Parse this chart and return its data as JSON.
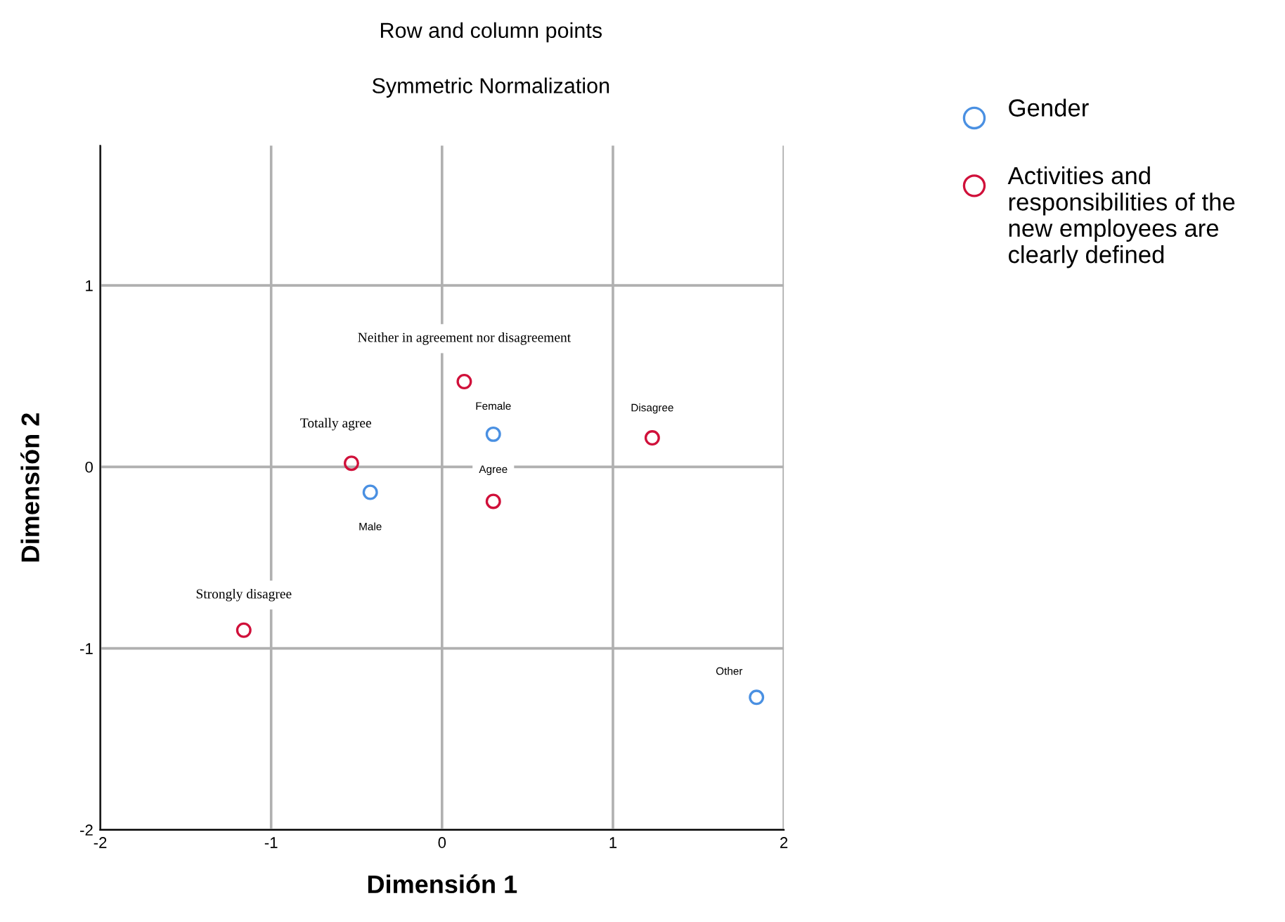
{
  "chart_data": {
    "type": "scatter",
    "title": "Row and column points",
    "subtitle": "Symmetric Normalization",
    "xlabel": "Dimensión 1",
    "ylabel": "Dimensión 2",
    "xlim": [
      -2,
      2
    ],
    "ylim": [
      -2,
      1.77
    ],
    "xticks": [
      -2,
      -1,
      0,
      1,
      2
    ],
    "yticks": [
      -2,
      -1,
      0,
      1
    ],
    "grid": true,
    "legend": "top right",
    "marker": "circle",
    "series": [
      {
        "name": "Gender",
        "color": "#4a90e2",
        "x": [
          0.3,
          -0.42,
          1.84
        ],
        "values": [
          0.18,
          -0.14,
          -1.27
        ]
      },
      {
        "name": "Activities and responsibilities of the new employees are clearly defined",
        "color": "#d0103a",
        "x": [
          0.13,
          -0.53,
          0.3,
          1.23,
          -1.16
        ],
        "values": [
          0.47,
          0.02,
          -0.19,
          0.16,
          -0.9
        ]
      }
    ],
    "annotations": [
      {
        "text": "Female",
        "x": 0.3,
        "y": 0.18
      },
      {
        "text": "Male",
        "x": -0.42,
        "y": -0.14
      },
      {
        "text": "Other",
        "x": 1.84,
        "y": -1.27
      },
      {
        "text": "Neither in agreement nor disagreement",
        "x": 0.13,
        "y": 0.47
      },
      {
        "text": "Totally agree",
        "x": -0.53,
        "y": 0.02
      },
      {
        "text": "Agree",
        "x": 0.3,
        "y": -0.19
      },
      {
        "text": "Disagree",
        "x": 1.23,
        "y": 0.16
      },
      {
        "text": "Strongly disagree",
        "x": -1.16,
        "y": -0.9
      }
    ]
  }
}
